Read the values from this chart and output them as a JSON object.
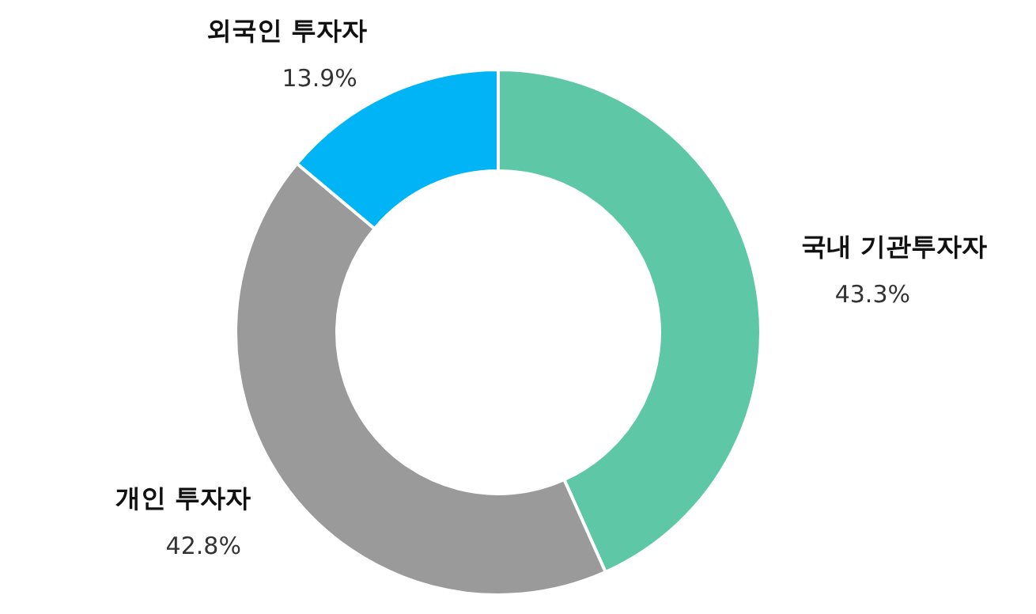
{
  "chart_data": {
    "type": "donut",
    "categories": [
      "국내 기관투자자",
      "개인 투자자",
      "외국인 투자자"
    ],
    "values": [
      43.3,
      42.8,
      13.9
    ],
    "colors": [
      "#5ec8a6",
      "#9a9a9a",
      "#00b4f5"
    ],
    "value_labels": [
      "43.3%",
      "42.8%",
      "13.9%"
    ],
    "legend": false
  }
}
